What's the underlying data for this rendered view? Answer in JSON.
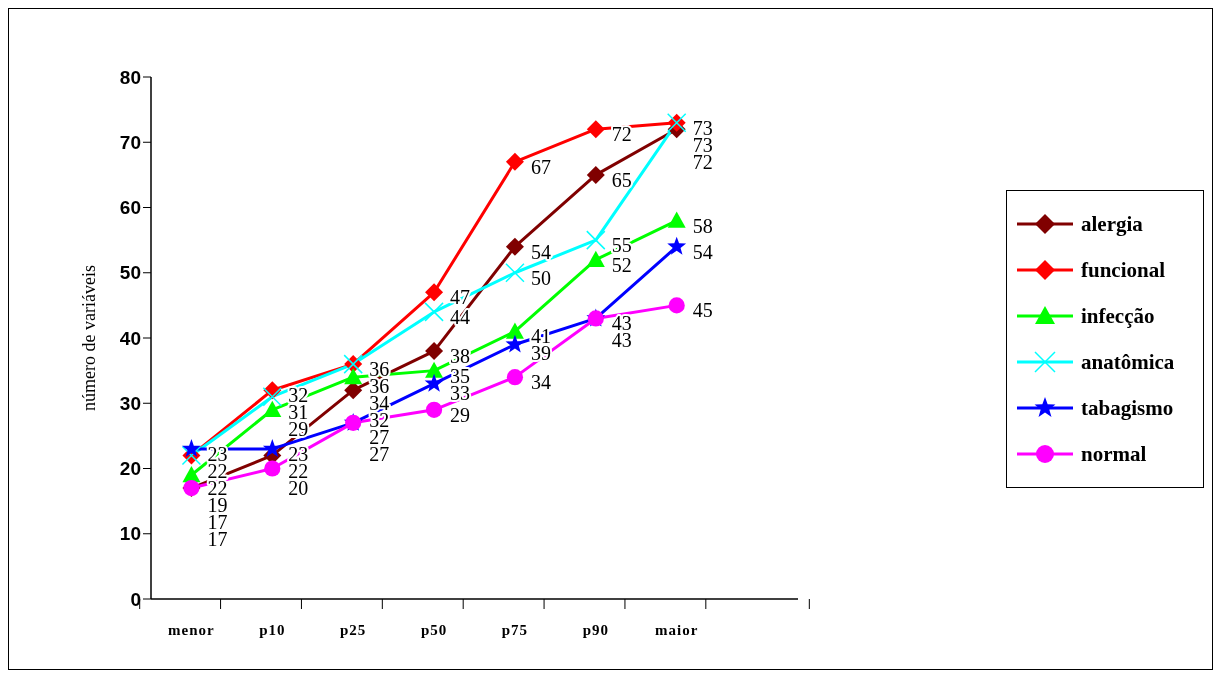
{
  "chart_data": {
    "type": "line",
    "ylabel": "número de variáveis",
    "categories": [
      "menor",
      "p10",
      "p25",
      "p50",
      "p75",
      "p90",
      "maior",
      null
    ],
    "series": [
      {
        "name": "alergia",
        "color": "#800000",
        "marker": "diamond",
        "values": [
          17,
          22,
          32,
          38,
          54,
          65,
          72,
          null
        ]
      },
      {
        "name": "funcional",
        "color": "#ff0000",
        "marker": "diamond",
        "values": [
          22,
          32,
          36,
          47,
          67,
          72,
          73,
          null
        ]
      },
      {
        "name": "infecção",
        "color": "#00ff00",
        "marker": "triangle",
        "values": [
          19,
          29,
          34,
          35,
          41,
          52,
          58,
          null
        ]
      },
      {
        "name": "anatômica",
        "color": "#00ffff",
        "marker": "cross",
        "values": [
          22,
          31,
          36,
          44,
          50,
          55,
          73,
          null
        ]
      },
      {
        "name": "tabagismo",
        "color": "#0000ff",
        "marker": "star",
        "values": [
          23,
          23,
          27,
          33,
          39,
          43,
          54,
          null
        ]
      },
      {
        "name": "normal",
        "color": "#ff00ff",
        "marker": "circle",
        "values": [
          17,
          20,
          27,
          29,
          34,
          43,
          45,
          null
        ]
      }
    ],
    "ylim": [
      0,
      80
    ],
    "yticks": [
      0,
      10,
      20,
      30,
      40,
      50,
      60,
      70,
      80
    ],
    "grid": false,
    "legend": "right",
    "data_labels": true,
    "line_style": "solid"
  }
}
